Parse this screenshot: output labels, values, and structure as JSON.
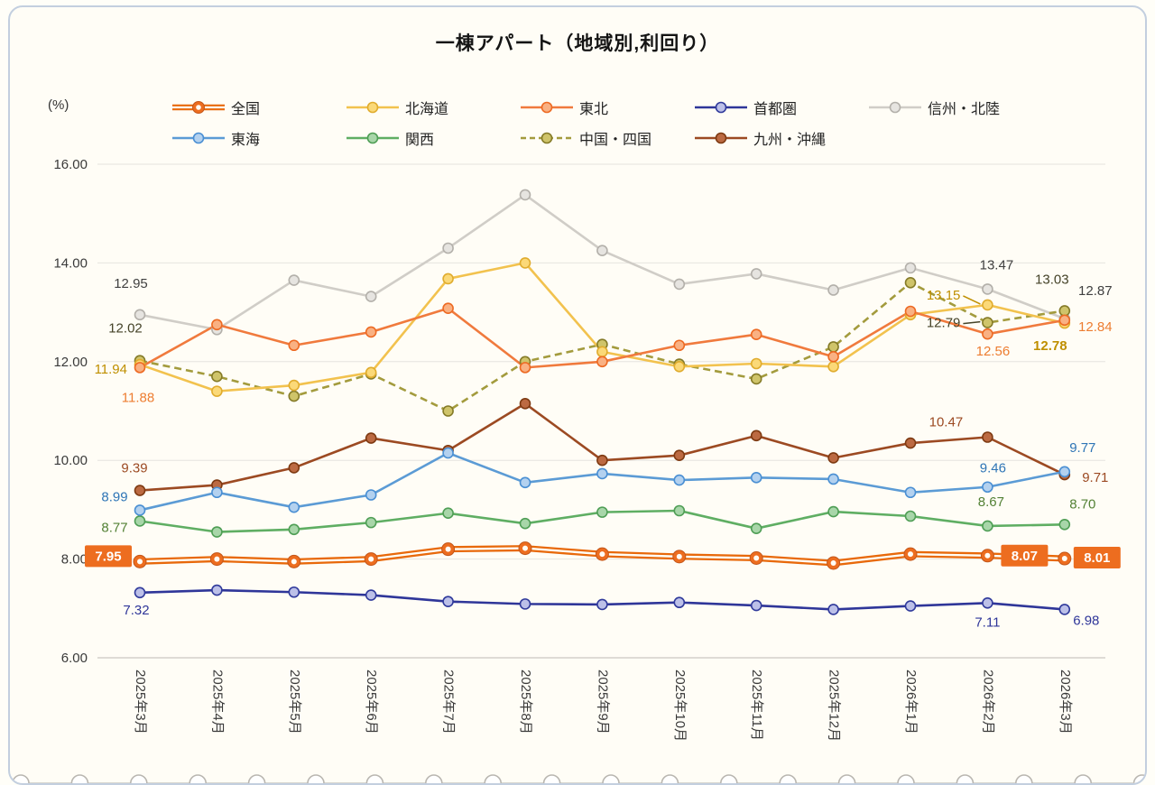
{
  "card": {
    "title": "一棟アパート（地域別,利回り）",
    "unit_label": "(%)"
  },
  "chart_data": {
    "type": "line",
    "title": "一棟アパート（地域別,利回り）",
    "ylabel": "(%)",
    "ylim": [
      6,
      16
    ],
    "yticks": [
      "16.00",
      "14.00",
      "12.00",
      "10.00",
      "8.00",
      "6.00"
    ],
    "grid": true,
    "legend_position": "top",
    "x_labels": [
      "2025年3月",
      "2025年4月",
      "2025年5月",
      "2025年6月",
      "2025年7月",
      "2025年8月",
      "2025年9月",
      "2025年10月",
      "2025年11月",
      "2025年12月",
      "2026年1月",
      "2026年2月",
      "2026年3月"
    ],
    "draw_order": [
      4,
      7,
      1,
      2,
      8,
      6,
      5,
      3,
      0
    ],
    "series": [
      {
        "name": "全国",
        "line_color": "#e8690b",
        "line_style": "double",
        "marker_fill": "#ed6d1f",
        "marker_stroke": "#c2561a",
        "label_color": "#ffffff",
        "label_box_color": "#ed6d1f",
        "values": [
          7.95,
          8.0,
          7.95,
          8.0,
          8.2,
          8.22,
          8.1,
          8.05,
          8.02,
          7.92,
          8.1,
          8.07,
          8.01
        ],
        "point_labels": [
          {
            "i": 0,
            "text": "7.95",
            "dx": -35,
            "dy": -6,
            "box": true
          },
          {
            "i": 11,
            "text": "8.07",
            "dx": 41,
            "dy": 0,
            "box": true
          },
          {
            "i": 12,
            "text": "8.01",
            "dx": 36,
            "dy": -1,
            "box": true
          }
        ]
      },
      {
        "name": "北海道",
        "line_color": "#f2c24e",
        "line_style": "solid",
        "marker_fill": "#fbd978",
        "marker_stroke": "#e0ac2e",
        "label_color": "#bf8f00",
        "values": [
          11.94,
          11.4,
          11.52,
          11.78,
          13.68,
          14.0,
          12.2,
          11.9,
          11.96,
          11.9,
          12.95,
          13.15,
          12.78
        ],
        "point_labels": [
          {
            "i": 0,
            "text": "11.94",
            "dx": -14,
            "dy": 10,
            "anchor": "end"
          },
          {
            "i": 11,
            "text": "13.15",
            "dx": -30,
            "dy": -6,
            "anchor": "end",
            "leader": true
          },
          {
            "i": 12,
            "text": "12.78",
            "dx": -16,
            "dy": 30,
            "bold": true
          }
        ]
      },
      {
        "name": "東北",
        "line_color": "#f07a3d",
        "line_style": "solid",
        "marker_fill": "#f9b183",
        "marker_stroke": "#ed6a23",
        "label_color": "#ed7d31",
        "values": [
          11.88,
          12.75,
          12.33,
          12.6,
          13.08,
          11.88,
          12.0,
          12.33,
          12.55,
          12.1,
          13.02,
          12.56,
          12.84
        ],
        "point_labels": [
          {
            "i": 0,
            "text": "11.88",
            "dx": -2,
            "dy": 38
          },
          {
            "i": 11,
            "text": "12.56",
            "dx": 6,
            "dy": 24
          },
          {
            "i": 12,
            "text": "12.84",
            "dx": 34,
            "dy": 12
          }
        ]
      },
      {
        "name": "首都圏",
        "line_color": "#2f3699",
        "line_style": "solid",
        "marker_fill": "#bcc0e8",
        "marker_stroke": "#303a9b",
        "label_color": "#2f3699",
        "values": [
          7.32,
          7.37,
          7.33,
          7.27,
          7.14,
          7.09,
          7.08,
          7.12,
          7.06,
          6.98,
          7.05,
          7.11,
          6.98
        ],
        "point_labels": [
          {
            "i": 0,
            "text": "7.32",
            "dx": -4,
            "dy": 24
          },
          {
            "i": 11,
            "text": "7.11",
            "dx": 0,
            "dy": 26
          },
          {
            "i": 12,
            "text": "6.98",
            "dx": 24,
            "dy": 17
          }
        ]
      },
      {
        "name": "信州・北陸",
        "line_color": "#d0cdc7",
        "line_style": "solid",
        "marker_fill": "#e6e4e0",
        "marker_stroke": "#b3b0aa",
        "label_color": "#404040",
        "values": [
          12.95,
          12.65,
          13.65,
          13.32,
          14.3,
          15.38,
          14.25,
          13.57,
          13.78,
          13.45,
          13.9,
          13.47,
          12.87
        ],
        "point_labels": [
          {
            "i": 0,
            "text": "12.95",
            "dx": -10,
            "dy": -30
          },
          {
            "i": 11,
            "text": "13.47",
            "dx": 10,
            "dy": -22
          },
          {
            "i": 12,
            "text": "12.87",
            "dx": 34,
            "dy": -26
          }
        ]
      },
      {
        "name": "東海",
        "line_color": "#5b9bd5",
        "line_style": "solid",
        "marker_fill": "#b3d1ef",
        "marker_stroke": "#4a8fd3",
        "label_color": "#2e75b6",
        "values": [
          8.99,
          9.35,
          9.05,
          9.3,
          10.15,
          9.55,
          9.73,
          9.6,
          9.65,
          9.62,
          9.35,
          9.46,
          9.77
        ],
        "point_labels": [
          {
            "i": 0,
            "text": "8.99",
            "dx": -28,
            "dy": -10
          },
          {
            "i": 11,
            "text": "9.46",
            "dx": 6,
            "dy": -16
          },
          {
            "i": 12,
            "text": "9.77",
            "dx": 20,
            "dy": -22
          }
        ]
      },
      {
        "name": "関西",
        "line_color": "#5fae63",
        "line_style": "solid",
        "marker_fill": "#a8d6a9",
        "marker_stroke": "#4f9e55",
        "label_color": "#538135",
        "values": [
          8.77,
          8.55,
          8.6,
          8.74,
          8.93,
          8.72,
          8.95,
          8.98,
          8.62,
          8.96,
          8.87,
          8.67,
          8.7
        ],
        "point_labels": [
          {
            "i": 0,
            "text": "8.77",
            "dx": -28,
            "dy": 12
          },
          {
            "i": 11,
            "text": "8.67",
            "dx": 4,
            "dy": -22
          },
          {
            "i": 12,
            "text": "8.70",
            "dx": 20,
            "dy": -18
          }
        ]
      },
      {
        "name": "中国・四国",
        "line_color": "#a39b3d",
        "line_style": "dashed",
        "marker_fill": "#cfc46a",
        "marker_stroke": "#857b28",
        "label_color": "#454328",
        "values": [
          12.02,
          11.7,
          11.3,
          11.75,
          11.0,
          12.0,
          12.35,
          11.95,
          11.65,
          12.3,
          13.6,
          12.79,
          13.03
        ],
        "point_labels": [
          {
            "i": 0,
            "text": "12.02",
            "dx": -16,
            "dy": -31
          },
          {
            "i": 11,
            "text": "12.79",
            "dx": -30,
            "dy": 5,
            "anchor": "end",
            "leader": true
          },
          {
            "i": 12,
            "text": "13.03",
            "dx": -14,
            "dy": -30
          }
        ]
      },
      {
        "name": "九州・沖縄",
        "line_color": "#9c4a22",
        "line_style": "solid",
        "marker_fill": "#bc6a42",
        "marker_stroke": "#7e3a12",
        "label_color": "#9c4a22",
        "values": [
          9.39,
          9.5,
          9.85,
          10.45,
          10.2,
          11.15,
          10.0,
          10.1,
          10.5,
          10.05,
          10.35,
          10.47,
          9.71
        ],
        "point_labels": [
          {
            "i": 0,
            "text": "9.39",
            "dx": -6,
            "dy": -20
          },
          {
            "i": 11,
            "text": "10.47",
            "dx": -46,
            "dy": -12
          },
          {
            "i": 12,
            "text": "9.71",
            "dx": 34,
            "dy": 8
          }
        ]
      }
    ]
  }
}
